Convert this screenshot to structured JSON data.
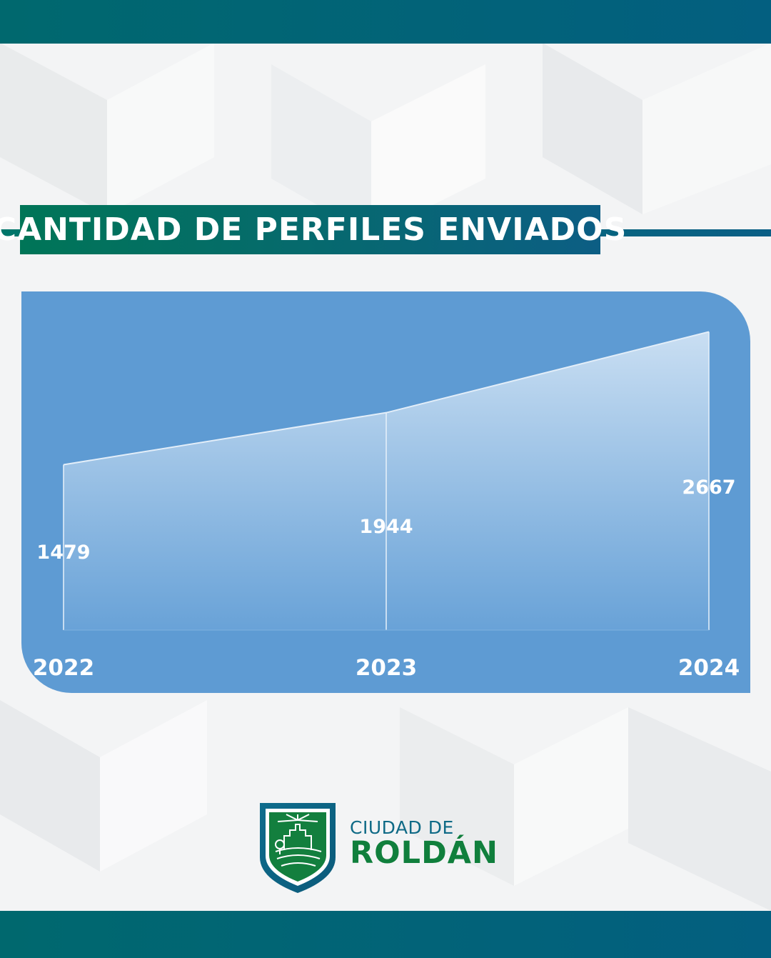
{
  "title": "CANTIDAD DE PERFILES ENVIADOS",
  "chart_data": {
    "type": "area",
    "categories": [
      "2022",
      "2023",
      "2024"
    ],
    "values": [
      1479,
      1944,
      2667
    ],
    "title": "CANTIDAD DE PERFILES ENVIADOS",
    "xlabel": "",
    "ylabel": "",
    "ylim": [
      0,
      2900
    ],
    "grid": false,
    "legend": "none",
    "colors": {
      "panel": "#5e9bd3",
      "area_top": "#c9def2",
      "area_bottom": "#6ea6da",
      "labels": "#ffffff"
    }
  },
  "logo": {
    "line1": "CIUDAD DE",
    "line2": "ROLDÁN",
    "icon": "city-shield-icon"
  },
  "colors": {
    "brand_teal": "#00686e",
    "brand_blue": "#035f80",
    "brand_green": "#107f3c"
  }
}
